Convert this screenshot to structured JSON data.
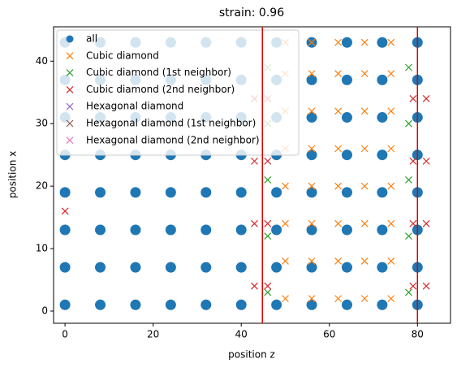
{
  "chart_data": {
    "type": "scatter",
    "title": "strain: 0.96",
    "xlabel": "position z",
    "ylabel": "position x",
    "xlim": [
      -2.6,
      87.5
    ],
    "ylim": [
      -1.95,
      45.5
    ],
    "xticks": [
      0,
      20,
      40,
      60,
      80
    ],
    "yticks": [
      0,
      10,
      20,
      30,
      40
    ],
    "legend": "upper left",
    "vlines": [
      44.8,
      80
    ],
    "vline_color": "#e00000",
    "series": [
      {
        "name": "all",
        "color": "#1f77b4",
        "marker": "o",
        "x": [
          0,
          8,
          16,
          24,
          32,
          40,
          48,
          56,
          64,
          72,
          80,
          0,
          8,
          16,
          24,
          32,
          40,
          48,
          56,
          64,
          72,
          80,
          0,
          8,
          16,
          24,
          32,
          40,
          48,
          56,
          64,
          72,
          80,
          0,
          8,
          16,
          24,
          32,
          40,
          48,
          56,
          64,
          72,
          80,
          0,
          8,
          16,
          24,
          32,
          40,
          48,
          56,
          64,
          72,
          80,
          0,
          8,
          16,
          24,
          32,
          40,
          48,
          56,
          64,
          72,
          80,
          0,
          8,
          16,
          24,
          32,
          40,
          48,
          56,
          64,
          72,
          80,
          0,
          8,
          16,
          24,
          32,
          40,
          48,
          56,
          64,
          72,
          80
        ],
        "y": [
          1,
          1,
          1,
          1,
          1,
          1,
          1,
          1,
          1,
          1,
          1,
          7,
          7,
          7,
          7,
          7,
          7,
          7,
          7,
          7,
          7,
          7,
          13,
          13,
          13,
          13,
          13,
          13,
          13,
          13,
          13,
          13,
          13,
          19,
          19,
          19,
          19,
          19,
          19,
          19,
          19,
          19,
          19,
          19,
          25,
          25,
          25,
          25,
          25,
          25,
          25,
          25,
          25,
          25,
          25,
          31,
          31,
          31,
          31,
          31,
          31,
          31,
          31,
          31,
          31,
          31,
          37,
          37,
          37,
          37,
          37,
          37,
          37,
          37,
          37,
          37,
          37,
          43,
          43,
          43,
          43,
          43,
          43,
          43,
          43,
          43,
          43,
          43
        ]
      },
      {
        "name": "Cubic diamond",
        "color": "#ff7f0e",
        "marker": "x",
        "x": [
          50,
          56,
          62,
          68,
          74,
          50,
          56,
          62,
          68,
          74,
          50,
          56,
          62,
          68,
          74,
          50,
          56,
          62,
          68,
          74,
          50,
          56,
          62,
          68,
          74,
          50,
          56,
          62,
          68,
          74,
          50,
          56,
          62,
          68,
          74,
          50,
          56,
          62,
          68,
          74
        ],
        "y": [
          2,
          2,
          2,
          2,
          2,
          8,
          8,
          8,
          8,
          8,
          14,
          14,
          14,
          14,
          14,
          20,
          20,
          20,
          20,
          20,
          26,
          26,
          26,
          26,
          26,
          32,
          32,
          32,
          32,
          32,
          38,
          38,
          38,
          38,
          38,
          43,
          43,
          43,
          43,
          43
        ]
      },
      {
        "name": "Cubic diamond (1st neighbor)",
        "color": "#2ca02c",
        "marker": "x",
        "x": [
          46,
          78,
          46,
          78,
          46,
          78,
          46,
          78,
          46,
          78
        ],
        "y": [
          3,
          3,
          12,
          12,
          21,
          21,
          30,
          30,
          39,
          39
        ]
      },
      {
        "name": "Cubic diamond (2nd neighbor)",
        "color": "#d62728",
        "marker": "x",
        "x": [
          43,
          46,
          79,
          82,
          43,
          46,
          79,
          82,
          43,
          46,
          79,
          82,
          43,
          46,
          79,
          82,
          0
        ],
        "y": [
          4,
          4,
          4,
          4,
          14,
          14,
          14,
          14,
          24,
          24,
          24,
          24,
          34,
          34,
          34,
          34,
          16
        ]
      },
      {
        "name": "Hexagonal diamond",
        "color": "#9467bd",
        "marker": "x",
        "x": [],
        "y": []
      },
      {
        "name": "Hexagonal diamond (1st neighbor)",
        "color": "#8c564b",
        "marker": "x",
        "x": [],
        "y": []
      },
      {
        "name": "Hexagonal diamond (2nd neighbor)",
        "color": "#e377c2",
        "marker": "x",
        "x": [],
        "y": []
      }
    ]
  }
}
